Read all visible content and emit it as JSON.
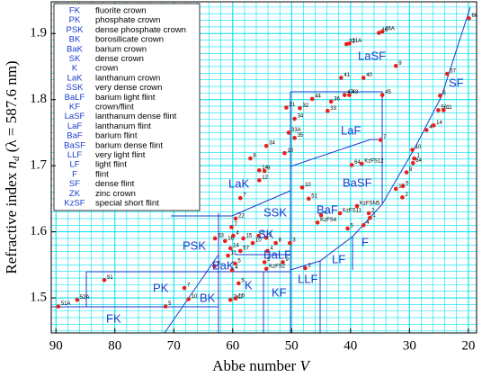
{
  "chart_data": {
    "type": "scatter",
    "x_label": {
      "text": "Abbe number",
      "symbol": "V"
    },
    "y_label": {
      "text": "Refractive index",
      "symbol": "n",
      "subscript": "d",
      "note": "(λ = 587.6 nm)"
    },
    "xlim": [
      90.8,
      18.6
    ],
    "ylim": [
      1.447,
      1.948
    ],
    "xticks": [
      90,
      80,
      70,
      60,
      50,
      40,
      30,
      20
    ],
    "yticks": [
      1.5,
      1.6,
      1.7,
      1.8,
      1.9
    ],
    "grid": true,
    "grid_color": "#00e1ef",
    "point_color": "#e8201c",
    "legend": [
      {
        "code": "FK",
        "text": "fluorite crown"
      },
      {
        "code": "PK",
        "text": "phosphate crown"
      },
      {
        "code": "PSK",
        "text": "dense phosphate crown"
      },
      {
        "code": "BK",
        "text": "borosilicate crown"
      },
      {
        "code": "BaK",
        "text": "barium crown"
      },
      {
        "code": "SK",
        "text": "dense crown"
      },
      {
        "code": "K",
        "text": "crown"
      },
      {
        "code": "LaK",
        "text": "lanthanum crown"
      },
      {
        "code": "SSK",
        "text": "very dense crown"
      },
      {
        "code": "BaLF",
        "text": "barium light flint"
      },
      {
        "code": "KF",
        "text": "crown/flint"
      },
      {
        "code": "LaSF",
        "text": "lanthanum dense flint"
      },
      {
        "code": "LaF",
        "text": "lanthanum flint"
      },
      {
        "code": "BaF",
        "text": "barium flint"
      },
      {
        "code": "BaSF",
        "text": "barium dense flint"
      },
      {
        "code": "LLF",
        "text": "very light flint"
      },
      {
        "code": "LF",
        "text": "light flint"
      },
      {
        "code": "F",
        "text": "flint"
      },
      {
        "code": "SF",
        "text": "dense flint"
      },
      {
        "code": "ZK",
        "text": "zinc crown"
      },
      {
        "code": "KzSF",
        "text": "special short flint"
      }
    ],
    "region_labels": [
      "FK",
      "PK",
      "BK",
      "K",
      "KF",
      "LLF",
      "LF",
      "F",
      "BaK",
      "BaLF",
      "SK",
      "PSK",
      "SSK",
      "BaF",
      "BaSF",
      "LaK",
      "LaF",
      "LaSF",
      "SF"
    ],
    "points": [
      {
        "label": "51A",
        "x": 89.6,
        "y": 1.487
      },
      {
        "label": "52A",
        "x": 86.4,
        "y": 1.497
      },
      {
        "label": "51",
        "x": 81.8,
        "y": 1.527
      },
      {
        "label": "5",
        "x": 71.4,
        "y": 1.487
      },
      {
        "label": "10",
        "x": 67.5,
        "y": 1.498
      },
      {
        "label": "7",
        "x": 68.2,
        "y": 1.515
      },
      {
        "label": "3",
        "x": 63.1,
        "y": 1.548
      },
      {
        "label": "ZK7",
        "x": 60.4,
        "y": 1.497
      },
      {
        "label": "5",
        "x": 59.0,
        "y": 1.522
      },
      {
        "label": "10",
        "x": 59.5,
        "y": 1.499
      },
      {
        "label": "4",
        "x": 60.1,
        "y": 1.542
      },
      {
        "label": "16",
        "x": 61.3,
        "y": 1.586
      },
      {
        "label": "14",
        "x": 60.4,
        "y": 1.575
      },
      {
        "label": "11",
        "x": 60.8,
        "y": 1.564
      },
      {
        "label": "4",
        "x": 59.9,
        "y": 1.594
      },
      {
        "label": "5",
        "x": 59.6,
        "y": 1.552
      },
      {
        "label": "10",
        "x": 56.6,
        "y": 1.583
      },
      {
        "label": "15",
        "x": 58.2,
        "y": 1.59
      },
      {
        "label": "57",
        "x": 58.7,
        "y": 1.571
      },
      {
        "label": "8",
        "x": 52.7,
        "y": 1.583
      },
      {
        "label": "2",
        "x": 54.3,
        "y": 1.591
      },
      {
        "label": "5",
        "x": 55.6,
        "y": 1.594
      },
      {
        "label": "53",
        "x": 63.0,
        "y": 1.59
      },
      {
        "label": "7",
        "x": 60.2,
        "y": 1.607
      },
      {
        "label": "22",
        "x": 59.5,
        "y": 1.62
      },
      {
        "label": "4",
        "x": 54.1,
        "y": 1.571
      },
      {
        "label": "5",
        "x": 54.6,
        "y": 1.554
      },
      {
        "label": "KzFS2",
        "x": 54.3,
        "y": 1.544
      },
      {
        "label": "9",
        "x": 51.5,
        "y": 1.554
      },
      {
        "label": "1",
        "x": 47.7,
        "y": 1.545
      },
      {
        "label": "5",
        "x": 40.5,
        "y": 1.605
      },
      {
        "label": "2",
        "x": 36.9,
        "y": 1.628
      },
      {
        "label": "4",
        "x": 37.8,
        "y": 1.61
      },
      {
        "label": "1",
        "x": 36.7,
        "y": 1.621
      },
      {
        "label": "3",
        "x": 50.3,
        "y": 1.583
      },
      {
        "label": "51",
        "x": 47.1,
        "y": 1.65
      },
      {
        "label": "KzFS4",
        "x": 45.6,
        "y": 1.614
      },
      {
        "label": "KzFSN5",
        "x": 38.9,
        "y": 1.639
      },
      {
        "label": "KzFS11",
        "x": 41.8,
        "y": 1.628
      },
      {
        "label": "4",
        "x": 45.0,
        "y": 1.625
      },
      {
        "label": "64",
        "x": 39.8,
        "y": 1.701
      },
      {
        "label": "KzFS12",
        "x": 38.1,
        "y": 1.703
      },
      {
        "label": "10",
        "x": 48.2,
        "y": 1.667
      },
      {
        "label": "2",
        "x": 31.2,
        "y": 1.652
      },
      {
        "label": "19",
        "x": 32.3,
        "y": 1.665
      },
      {
        "label": "5",
        "x": 31.1,
        "y": 1.669
      },
      {
        "label": "8",
        "x": 30.5,
        "y": 1.69
      },
      {
        "label": "1",
        "x": 29.2,
        "y": 1.711
      },
      {
        "label": "64",
        "x": 29.4,
        "y": 1.704
      },
      {
        "label": "10",
        "x": 29.5,
        "y": 1.724
      },
      {
        "label": "4",
        "x": 27.1,
        "y": 1.754
      },
      {
        "label": "14",
        "x": 25.9,
        "y": 1.761
      },
      {
        "label": "56",
        "x": 25.1,
        "y": 1.784
      },
      {
        "label": "11",
        "x": 24.2,
        "y": 1.784
      },
      {
        "label": "5",
        "x": 24.8,
        "y": 1.806
      },
      {
        "label": "57",
        "x": 23.6,
        "y": 1.839
      },
      {
        "label": "66",
        "x": 19.9,
        "y": 1.923
      },
      {
        "label": "31",
        "x": 40.7,
        "y": 1.884
      },
      {
        "label": "31A",
        "x": 40.2,
        "y": 1.885
      },
      {
        "label": "46",
        "x": 35.2,
        "y": 1.901
      },
      {
        "label": "46A",
        "x": 34.6,
        "y": 1.903
      },
      {
        "label": "9",
        "x": 32.3,
        "y": 1.851
      },
      {
        "label": "41",
        "x": 41.6,
        "y": 1.833
      },
      {
        "label": "40",
        "x": 37.8,
        "y": 1.833
      },
      {
        "label": "47",
        "x": 41.0,
        "y": 1.807
      },
      {
        "label": "43",
        "x": 40.2,
        "y": 1.807
      },
      {
        "label": "45",
        "x": 34.6,
        "y": 1.807
      },
      {
        "label": "44",
        "x": 46.5,
        "y": 1.801
      },
      {
        "label": "36",
        "x": 43.3,
        "y": 1.797
      },
      {
        "label": "21",
        "x": 50.9,
        "y": 1.788
      },
      {
        "label": "32",
        "x": 48.6,
        "y": 1.787
      },
      {
        "label": "33",
        "x": 43.9,
        "y": 1.783
      },
      {
        "label": "34",
        "x": 49.5,
        "y": 1.771
      },
      {
        "label": "35",
        "x": 49.5,
        "y": 1.742
      },
      {
        "label": "33A",
        "x": 50.5,
        "y": 1.75
      },
      {
        "label": "7",
        "x": 34.9,
        "y": 1.739
      },
      {
        "label": "34",
        "x": 54.3,
        "y": 1.73
      },
      {
        "label": "10",
        "x": 51.2,
        "y": 1.719
      },
      {
        "label": "8",
        "x": 57.0,
        "y": 1.711
      },
      {
        "label": "14",
        "x": 55.5,
        "y": 1.693
      },
      {
        "label": "9",
        "x": 54.6,
        "y": 1.692
      },
      {
        "label": "12",
        "x": 55.5,
        "y": 1.678
      },
      {
        "label": "7",
        "x": 58.7,
        "y": 1.651
      }
    ]
  }
}
